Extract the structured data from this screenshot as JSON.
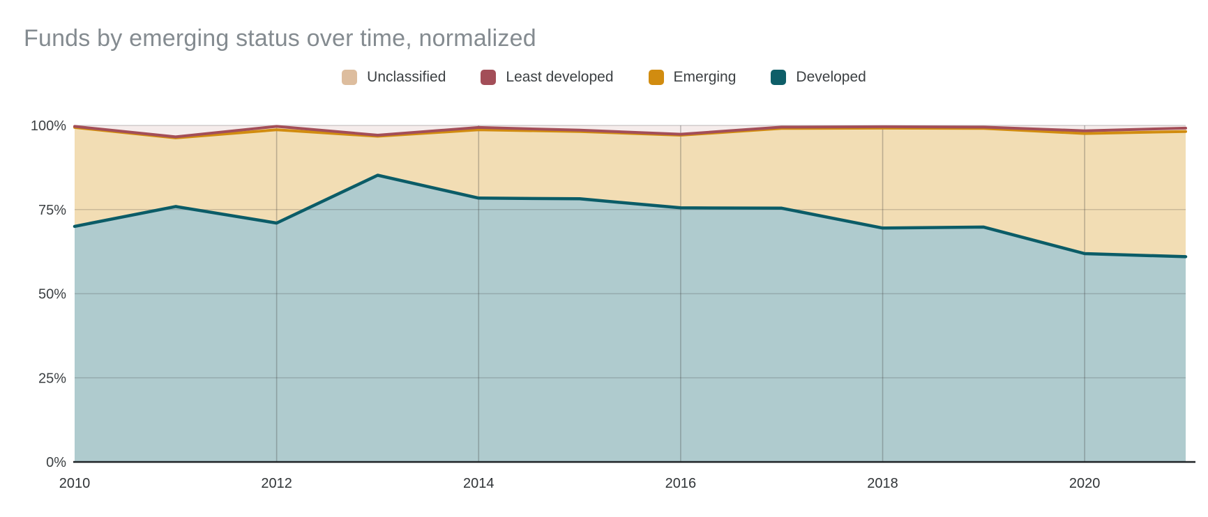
{
  "title": "Funds by emerging status over time, normalized",
  "legend": {
    "items": [
      {
        "label": "Unclassified",
        "color": "#DDBD9E"
      },
      {
        "label": "Least developed",
        "color": "#A34E58"
      },
      {
        "label": "Emerging",
        "color": "#D18C10"
      },
      {
        "label": "Developed",
        "color": "#0E5E68"
      }
    ]
  },
  "chart_data": {
    "type": "area",
    "stacked": true,
    "normalized": true,
    "title": "Funds by emerging status over time, normalized",
    "x": [
      2010,
      2011,
      2012,
      2013,
      2014,
      2015,
      2016,
      2017,
      2018,
      2019,
      2020,
      2021
    ],
    "series": [
      {
        "name": "Developed",
        "values": [
          70.0,
          75.9,
          71.0,
          85.2,
          78.4,
          78.2,
          75.5,
          75.4,
          69.5,
          69.8,
          61.9,
          61.0
        ],
        "line_color": "#0B5C67",
        "fill_color": "#AFCBCE"
      },
      {
        "name": "Unclassified",
        "values": [
          29.4,
          20.4,
          27.7,
          11.6,
          20.3,
          20.0,
          21.6,
          23.7,
          29.7,
          29.3,
          35.7,
          37.2
        ],
        "line_color": "none",
        "fill_color": "#F2DDB4"
      },
      {
        "name": "Emerging",
        "values": [
          0.3,
          0.3,
          1.0,
          0.3,
          0.7,
          0.4,
          0.3,
          0.4,
          0.4,
          0.4,
          0.8,
          1.0
        ],
        "line_color": "#D18C10",
        "fill_color": "#F8EAD1"
      },
      {
        "name": "Least developed",
        "values": [
          0.3,
          3.4,
          0.3,
          2.9,
          0.6,
          1.4,
          2.6,
          0.5,
          0.4,
          0.5,
          1.6,
          0.8
        ],
        "line_color": "#A34E58",
        "fill_color": "#F5ECEB"
      }
    ],
    "stack_order_bottom_to_top": [
      "Developed",
      "Unclassified",
      "Emerging",
      "Least developed"
    ],
    "xlabel": "",
    "ylabel": "",
    "ylim": [
      0,
      100
    ],
    "yticks": [
      "0%",
      "25%",
      "50%",
      "75%",
      "100%"
    ],
    "ytick_values": [
      0,
      25,
      50,
      75,
      100
    ],
    "xticks": [
      "2010",
      "2012",
      "2014",
      "2016",
      "2018",
      "2020"
    ],
    "xtick_values": [
      2010,
      2012,
      2014,
      2016,
      2018,
      2020
    ],
    "grid": true,
    "legend_position": "top"
  }
}
